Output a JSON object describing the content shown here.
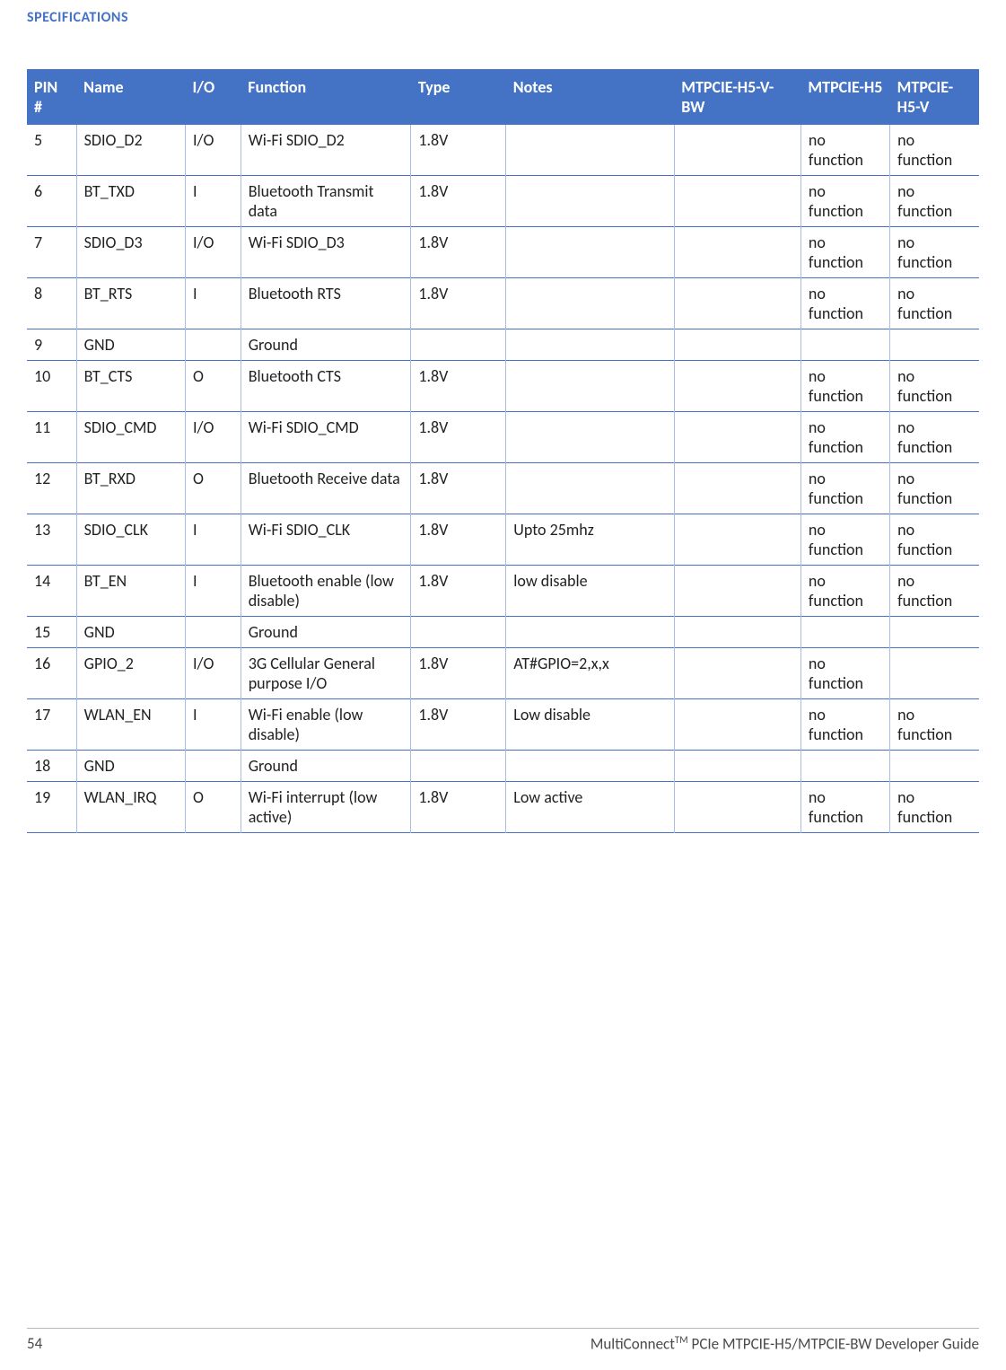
{
  "section_title": "SPECIFICATIONS",
  "table": {
    "headers": {
      "pin": "PIN #",
      "name": "Name",
      "io": "I/O",
      "func": "Function",
      "type": "Type",
      "notes": "Notes",
      "mbw": "MTPCIE-H5-V-BW",
      "mh5": "MTPCIE-H5",
      "mh5v": "MTPCIE-H5-V"
    },
    "rows": [
      {
        "pin": "5",
        "name": "SDIO_D2",
        "io": "I/O",
        "func": "Wi-Fi SDIO_D2",
        "type": "1.8V",
        "notes": "",
        "mbw": "",
        "mh5": "no function",
        "mh5v": "no function"
      },
      {
        "pin": "6",
        "name": "BT_TXD",
        "io": "I",
        "func": "Bluetooth Transmit data",
        "type": "1.8V",
        "notes": "",
        "mbw": "",
        "mh5": "no function",
        "mh5v": "no function"
      },
      {
        "pin": "7",
        "name": "SDIO_D3",
        "io": "I/O",
        "func": "Wi-Fi SDIO_D3",
        "type": "1.8V",
        "notes": "",
        "mbw": "",
        "mh5": "no function",
        "mh5v": "no function"
      },
      {
        "pin": "8",
        "name": "BT_RTS",
        "io": "I",
        "func": "Bluetooth RTS",
        "type": "1.8V",
        "notes": "",
        "mbw": "",
        "mh5": "no function",
        "mh5v": "no function"
      },
      {
        "pin": "9",
        "name": "GND",
        "io": "",
        "func": "Ground",
        "type": "",
        "notes": "",
        "mbw": "",
        "mh5": "",
        "mh5v": ""
      },
      {
        "pin": "10",
        "name": "BT_CTS",
        "io": "O",
        "func": "Bluetooth CTS",
        "type": "1.8V",
        "notes": "",
        "mbw": "",
        "mh5": "no function",
        "mh5v": "no function"
      },
      {
        "pin": "11",
        "name": "SDIO_CMD",
        "io": "I/O",
        "func": "Wi-Fi SDIO_CMD",
        "type": "1.8V",
        "notes": "",
        "mbw": "",
        "mh5": "no function",
        "mh5v": "no function"
      },
      {
        "pin": "12",
        "name": "BT_RXD",
        "io": "O",
        "func": "Bluetooth Receive data",
        "type": "1.8V",
        "notes": "",
        "mbw": "",
        "mh5": "no function",
        "mh5v": "no function"
      },
      {
        "pin": "13",
        "name": "SDIO_CLK",
        "io": "I",
        "func": "Wi-Fi SDIO_CLK",
        "type": "1.8V",
        "notes": "Upto 25mhz",
        "mbw": "",
        "mh5": "no function",
        "mh5v": "no function"
      },
      {
        "pin": "14",
        "name": "BT_EN",
        "io": "I",
        "func": "Bluetooth enable (low disable)",
        "type": "1.8V",
        "notes": "low disable",
        "mbw": "",
        "mh5": "no function",
        "mh5v": "no function"
      },
      {
        "pin": "15",
        "name": "GND",
        "io": "",
        "func": "Ground",
        "type": "",
        "notes": "",
        "mbw": "",
        "mh5": "",
        "mh5v": ""
      },
      {
        "pin": "16",
        "name": "GPIO_2",
        "io": "I/O",
        "func": "3G Cellular General purpose I/O",
        "type": "1.8V",
        "notes": "AT#GPIO=2,x,x",
        "mbw": "",
        "mh5": "no function",
        "mh5v": ""
      },
      {
        "pin": "17",
        "name": "WLAN_EN",
        "io": "I",
        "func": "Wi-Fi enable (low disable)",
        "type": "1.8V",
        "notes": "Low disable",
        "mbw": "",
        "mh5": "no function",
        "mh5v": "no function"
      },
      {
        "pin": "18",
        "name": "GND",
        "io": "",
        "func": "Ground",
        "type": "",
        "notes": "",
        "mbw": "",
        "mh5": "",
        "mh5v": ""
      },
      {
        "pin": "19",
        "name": "WLAN_IRQ",
        "io": "O",
        "func": "Wi-Fi interrupt (low active)",
        "type": "1.8V",
        "notes": "Low active",
        "mbw": "",
        "mh5": "no function",
        "mh5v": "no function"
      }
    ]
  },
  "footer": {
    "page_number": "54",
    "doc_title_prefix": "MultiConnect",
    "doc_title_suffix": " PCIe MTPCIE-H5/MTPCIE-BW Developer Guide",
    "tm": "TM"
  },
  "style": {
    "accent": "#4472c4",
    "header_bg": "#4472c4",
    "header_fg": "#ffffff",
    "cell_border": "#a6bde6",
    "text_color": "#222222"
  }
}
